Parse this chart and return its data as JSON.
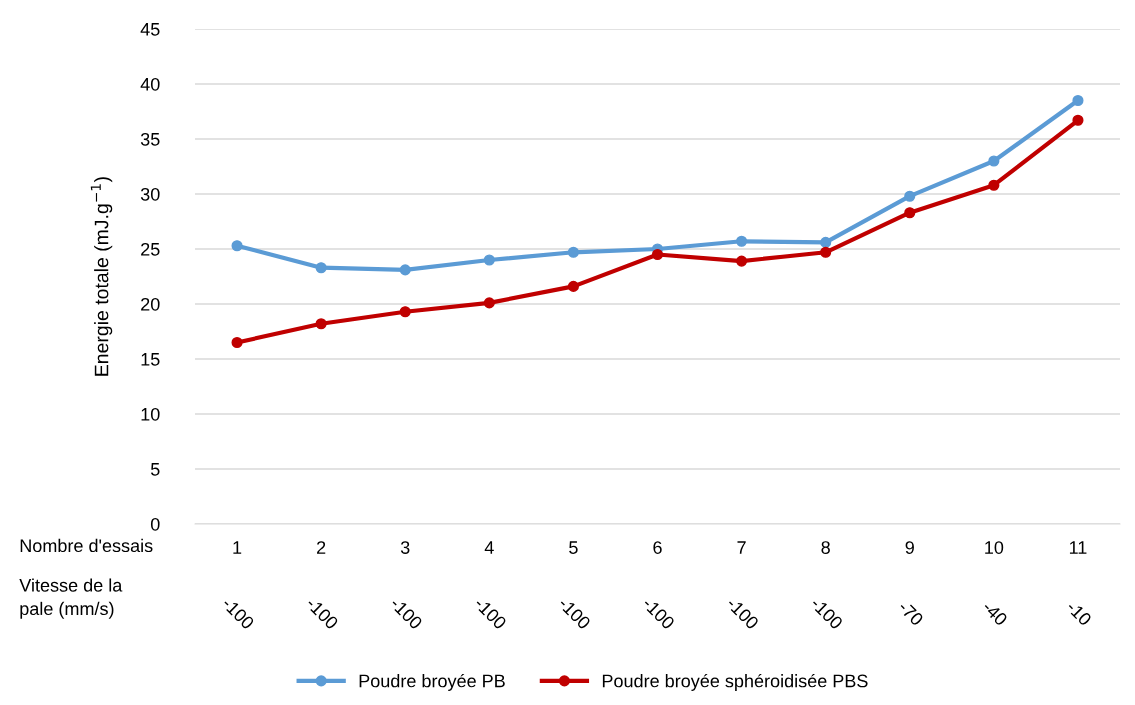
{
  "chart_data": {
    "type": "line",
    "categories": [
      "1",
      "2",
      "3",
      "4",
      "5",
      "6",
      "7",
      "8",
      "9",
      "10",
      "11"
    ],
    "ylabel": "Energie totale (mJ.g$^{−1}$)",
    "ylim": [
      0,
      45
    ],
    "yticks": [
      0,
      5,
      10,
      15,
      20,
      25,
      30,
      35,
      40,
      45
    ],
    "grid": "y",
    "legend": "bottom",
    "marker": "circle",
    "line_style": "solid",
    "series": [
      {
        "name": "Poudre broyée PB",
        "color": "#5b9bd5",
        "values": [
          25.3,
          23.3,
          23.1,
          24.0,
          24.7,
          25.0,
          25.7,
          25.6,
          29.8,
          33.0,
          38.5
        ]
      },
      {
        "name": "Poudre broyée sphéroidisée PBS",
        "color": "#c00000",
        "values": [
          16.5,
          18.2,
          19.3,
          20.1,
          21.6,
          24.5,
          23.9,
          24.7,
          28.3,
          30.8,
          36.7
        ]
      }
    ],
    "annotations": [
      "Nombre d'essais",
      "Vitesse de la pale (mm/s)",
      "-100",
      "-100",
      "-100",
      "-100",
      "-100",
      "-100",
      "-100",
      "-100",
      "-70",
      "-40",
      "-10"
    ]
  }
}
